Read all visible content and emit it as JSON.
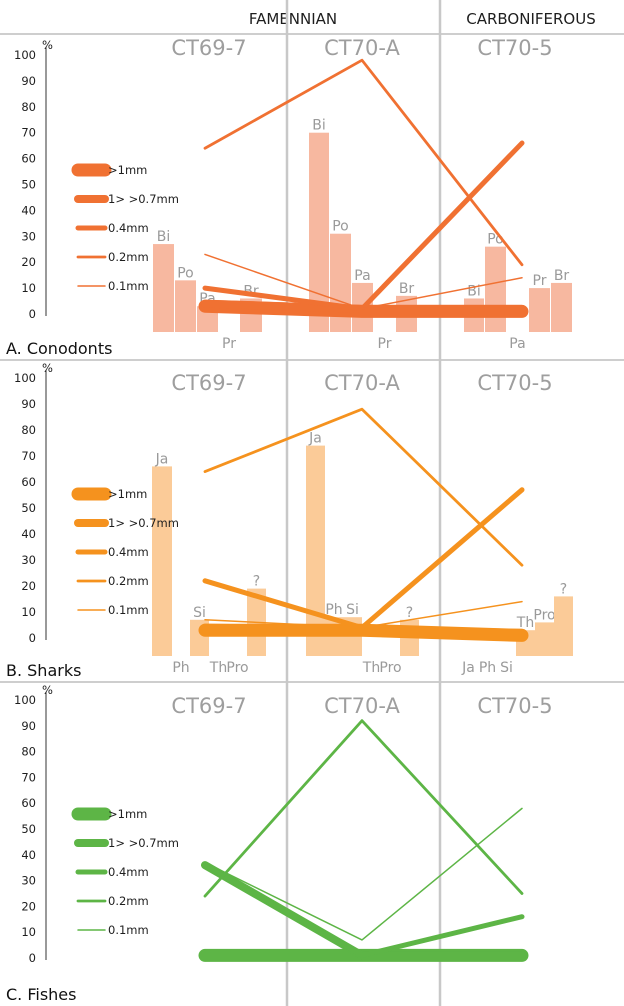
{
  "header": {
    "famennian": "FAMENNIAN",
    "carboniferous": "CARBONIFEROUS"
  },
  "chart_data": [
    {
      "type": "bar",
      "title": "A. Conodonts",
      "ylabel": "%",
      "ylim": [
        0,
        100
      ],
      "yticks": [
        "0",
        "10",
        "20",
        "30",
        "40",
        "50",
        "60",
        "70",
        "80",
        "90",
        "100"
      ],
      "sites": [
        "CT69-7",
        "CT70-A",
        "CT70-5"
      ],
      "bar_color": "#f7b8a0",
      "line_color": "#f07132",
      "bars": [
        {
          "site": "CT69-7",
          "categories": [
            "Bi",
            "Po",
            "Pa",
            "Pr",
            "Br"
          ],
          "values": [
            27,
            13,
            3,
            0,
            6
          ]
        },
        {
          "site": "CT70-A",
          "categories": [
            "Bi",
            "Po",
            "Pa",
            "Pr",
            "Br"
          ],
          "values": [
            70,
            31,
            12,
            0,
            7
          ]
        },
        {
          "site": "CT70-5",
          "categories": [
            "Bi",
            "Po",
            "Pa",
            "Pr",
            "Br"
          ],
          "values": [
            6,
            26,
            0,
            10,
            12
          ]
        }
      ],
      "series": [
        {
          "name": ">1mm",
          "values": [
            3,
            1,
            1
          ]
        },
        {
          "name": "1> >0.7mm",
          "values": [
            4,
            2,
            2
          ]
        },
        {
          "name": "0.4mm",
          "values": [
            10,
            2,
            66
          ]
        },
        {
          "name": "0.2mm",
          "values": [
            64,
            98,
            19
          ]
        },
        {
          "name": "0.1mm",
          "values": [
            23,
            2,
            14
          ]
        }
      ]
    },
    {
      "type": "bar",
      "title": "B. Sharks",
      "ylabel": "%",
      "ylim": [
        0,
        100
      ],
      "yticks": [
        "0",
        "10",
        "20",
        "30",
        "40",
        "50",
        "60",
        "70",
        "80",
        "90",
        "100"
      ],
      "sites": [
        "CT69-7",
        "CT70-A",
        "CT70-5"
      ],
      "bar_color": "#fbcb98",
      "line_color": "#f5921e",
      "bars": [
        {
          "site": "CT69-7",
          "categories": [
            "Ja",
            "Ph",
            "Si",
            "Th",
            "Pro",
            "?"
          ],
          "values": [
            66,
            0,
            7,
            0,
            0,
            19
          ]
        },
        {
          "site": "CT70-A",
          "categories": [
            "Ja",
            "Ph",
            "Si",
            "Th",
            "Pro",
            "?"
          ],
          "values": [
            74,
            8,
            8,
            0,
            0,
            7
          ]
        },
        {
          "site": "CT70-5",
          "categories": [
            "Ja",
            "Ph",
            "Si",
            "Th",
            "Pro",
            "?"
          ],
          "values": [
            0,
            0,
            0,
            3,
            6,
            16
          ]
        }
      ],
      "series": [
        {
          "name": ">1mm",
          "values": [
            3,
            3,
            1
          ]
        },
        {
          "name": "1> >0.7mm",
          "values": [
            4,
            3,
            2
          ]
        },
        {
          "name": "0.4mm",
          "values": [
            22,
            4,
            57
          ]
        },
        {
          "name": "0.2mm",
          "values": [
            64,
            88,
            28
          ]
        },
        {
          "name": "0.1mm",
          "values": [
            7,
            4,
            14
          ]
        }
      ]
    },
    {
      "type": "line",
      "title": "C. Fishes",
      "ylabel": "%",
      "ylim": [
        0,
        100
      ],
      "yticks": [
        "0",
        "10",
        "20",
        "30",
        "40",
        "50",
        "60",
        "70",
        "80",
        "90",
        "100"
      ],
      "sites": [
        "CT69-7",
        "CT70-A",
        "CT70-5"
      ],
      "line_color": "#5db546",
      "series": [
        {
          "name": ">1mm",
          "values": [
            1,
            1,
            1
          ]
        },
        {
          "name": "1> >0.7mm",
          "values": [
            36,
            1,
            1
          ]
        },
        {
          "name": "0.4mm",
          "values": [
            36,
            1,
            16
          ]
        },
        {
          "name": "0.2mm",
          "values": [
            24,
            92,
            25
          ]
        },
        {
          "name": "0.1mm",
          "values": [
            37,
            7,
            58
          ]
        }
      ]
    }
  ]
}
